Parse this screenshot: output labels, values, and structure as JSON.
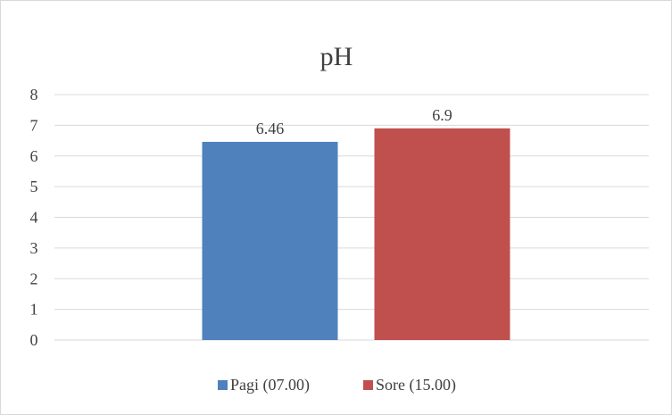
{
  "chart_data": {
    "type": "bar",
    "title": "pH",
    "xlabel": "",
    "ylabel": "",
    "ylim": [
      0,
      8
    ],
    "yticks": [
      0,
      1,
      2,
      3,
      4,
      5,
      6,
      7,
      8
    ],
    "grid": true,
    "legend_position": "bottom",
    "categories": [
      ""
    ],
    "series": [
      {
        "name": "Pagi (07.00)",
        "values": [
          6.46
        ],
        "color": "#4f81bd"
      },
      {
        "name": "Sore (15.00)",
        "values": [
          6.9
        ],
        "color": "#c0504d"
      }
    ],
    "data_labels": [
      "6.46",
      "6.9"
    ]
  }
}
